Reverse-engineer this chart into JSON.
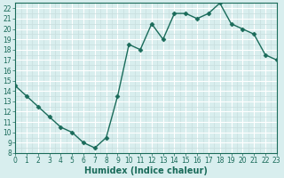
{
  "x": [
    0,
    1,
    2,
    3,
    4,
    5,
    6,
    7,
    8,
    9,
    10,
    11,
    12,
    13,
    14,
    15,
    16,
    17,
    18,
    19,
    20,
    21,
    22,
    23
  ],
  "y": [
    14.5,
    13.5,
    12.5,
    11.5,
    10.5,
    10.0,
    9.0,
    8.5,
    9.5,
    13.5,
    18.5,
    18.0,
    20.5,
    19.0,
    21.5,
    21.5,
    21.0,
    21.5,
    22.5,
    20.5,
    20.0,
    19.5,
    17.5,
    17.0
  ],
  "line_color": "#1a6b5a",
  "marker": "D",
  "markersize": 2.5,
  "linewidth": 1.0,
  "bg_color": "#d8eeee",
  "grid_major_color": "#ffffff",
  "grid_minor_color": "#c8dede",
  "xlabel": "Humidex (Indice chaleur)",
  "xlim": [
    0,
    23
  ],
  "ylim": [
    8,
    22.5
  ],
  "yticks": [
    8,
    9,
    10,
    11,
    12,
    13,
    14,
    15,
    16,
    17,
    18,
    19,
    20,
    21,
    22
  ],
  "xticks": [
    0,
    1,
    2,
    3,
    4,
    5,
    6,
    7,
    8,
    9,
    10,
    11,
    12,
    13,
    14,
    15,
    16,
    17,
    18,
    19,
    20,
    21,
    22,
    23
  ],
  "tick_fontsize": 5.5,
  "xlabel_fontsize": 7.0,
  "axis_color": "#1a6b5a",
  "spine_color": "#1a6b5a"
}
